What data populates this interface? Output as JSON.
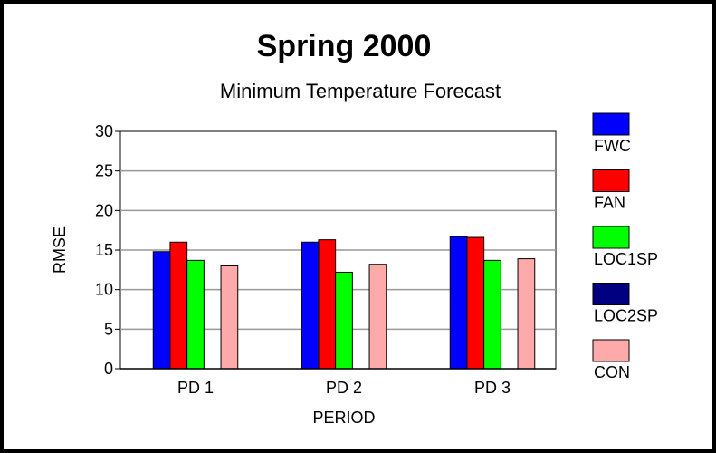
{
  "chart_data": {
    "type": "bar",
    "title": "Spring 2000",
    "subtitle": "Minimum Temperature Forecast",
    "y_label": "RMSE",
    "x_label": "PERIOD",
    "categories": [
      "PD 1",
      "PD 2",
      "PD 3"
    ],
    "series": [
      {
        "name": "FWC",
        "color": "#0000ff",
        "values": [
          14.8,
          16.0,
          16.7
        ]
      },
      {
        "name": "FAN",
        "color": "#ff0000",
        "values": [
          16.0,
          16.3,
          16.6
        ]
      },
      {
        "name": "LOC1SP",
        "color": "#00ff00",
        "values": [
          13.7,
          12.2,
          13.7
        ]
      },
      {
        "name": "LOC2SP",
        "color": "#000080",
        "values": [
          null,
          null,
          null
        ]
      },
      {
        "name": "CON",
        "color": "#ffaaaa",
        "values": [
          13.0,
          13.2,
          13.9
        ]
      }
    ],
    "ylim": [
      0,
      30
    ],
    "yticks": [
      0,
      5,
      10,
      15,
      20,
      25,
      30
    ],
    "grid": true,
    "legend": "right"
  }
}
